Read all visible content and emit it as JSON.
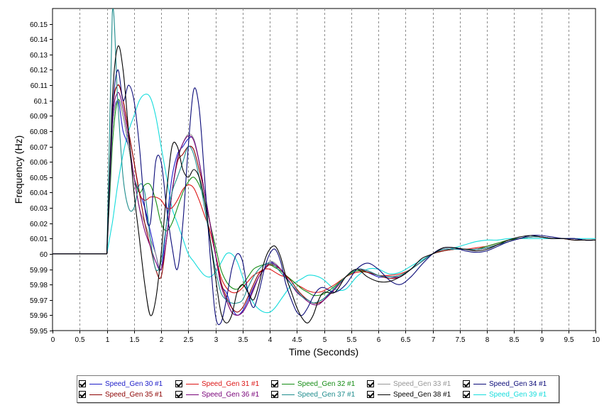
{
  "chart_data": {
    "type": "line",
    "xlabel": "Time (Seconds)",
    "ylabel": "Frequency (Hz)",
    "xlim": [
      0,
      10
    ],
    "ylim": [
      59.95,
      60.16
    ],
    "x_ticks": [
      "0",
      "0.5",
      "1",
      "1.5",
      "2",
      "2.5",
      "3",
      "3.5",
      "4",
      "4.5",
      "5",
      "5.5",
      "6",
      "6.5",
      "7",
      "7.5",
      "8",
      "8.5",
      "9",
      "9.5",
      "10"
    ],
    "y_ticks": [
      "59.95",
      "59.96",
      "59.97",
      "59.98",
      "59.99",
      "60",
      "60.01",
      "60.02",
      "60.03",
      "60.04",
      "60.05",
      "60.06",
      "60.07",
      "60.08",
      "60.09",
      "60.1",
      "60.11",
      "60.12",
      "60.13",
      "60.14",
      "60.15"
    ],
    "grid": "vertical dashed",
    "legend_placement": "bottom",
    "x": [
      0,
      1,
      1.1,
      1.2,
      1.3,
      1.4,
      1.5,
      1.6,
      1.7,
      1.8,
      1.9,
      2.0,
      2.1,
      2.2,
      2.3,
      2.4,
      2.5,
      2.6,
      2.7,
      2.8,
      2.9,
      3.0,
      3.1,
      3.2,
      3.3,
      3.4,
      3.5,
      3.6,
      3.7,
      3.8,
      3.9,
      4.0,
      4.1,
      4.2,
      4.3,
      4.4,
      4.5,
      4.6,
      4.7,
      4.8,
      4.9,
      5.0,
      5.2,
      5.4,
      5.6,
      5.8,
      6.0,
      6.2,
      6.4,
      6.6,
      6.8,
      7.0,
      7.2,
      7.4,
      7.6,
      7.8,
      8.0,
      8.2,
      8.4,
      8.6,
      8.8,
      9.0,
      9.2,
      9.4,
      9.6,
      9.8,
      10.0
    ],
    "series": [
      {
        "name": "Speed_Gen 30 #1",
        "color": "#1c1cc8",
        "values": [
          60,
          60,
          60.08,
          60.1,
          60.08,
          60.07,
          60.05,
          60.04,
          60.03,
          60.015,
          60.0,
          59.99,
          60.02,
          60.05,
          60.065,
          60.07,
          60.075,
          60.075,
          60.06,
          60.04,
          60.02,
          60.0,
          59.98,
          59.975,
          59.965,
          59.96,
          59.963,
          59.97,
          59.978,
          59.985,
          59.99,
          59.995,
          59.993,
          59.99,
          59.985,
          59.98,
          59.975,
          59.972,
          59.97,
          59.968,
          59.968,
          59.97,
          59.978,
          59.985,
          59.99,
          59.988,
          59.985,
          59.985,
          59.985,
          59.99,
          59.995,
          60.0,
          60.003,
          60.003,
          60.003,
          60.003,
          60.004,
          60.006,
          60.008,
          60.01,
          60.011,
          60.011,
          60.01,
          60.01,
          60.01,
          60.009,
          60.009
        ]
      },
      {
        "name": "Speed_Gen 31 #1",
        "color": "#dc1414",
        "values": [
          60,
          60,
          60.09,
          60.11,
          60.1,
          60.08,
          60.06,
          60.04,
          60.035,
          60.037,
          60.037,
          60.035,
          60.03,
          60.03,
          60.035,
          60.042,
          60.045,
          60.043,
          60.035,
          60.025,
          60.015,
          60.0,
          59.985,
          59.978,
          59.975,
          59.975,
          59.978,
          59.982,
          59.986,
          59.988,
          59.99,
          59.99,
          59.988,
          59.986,
          59.985,
          59.983,
          59.98,
          59.978,
          59.976,
          59.975,
          59.975,
          59.976,
          59.98,
          59.985,
          59.988,
          59.988,
          59.986,
          59.986,
          59.987,
          59.99,
          59.995,
          60.0,
          60.002,
          60.003,
          60.003,
          60.004,
          60.005,
          60.007,
          60.009,
          60.01,
          60.011,
          60.011,
          60.01,
          60.01,
          60.009,
          60.009,
          60.009
        ]
      },
      {
        "name": "Speed_Gen 32 #1",
        "color": "#148c14",
        "values": [
          60,
          60,
          60.07,
          60.1,
          60.09,
          60.07,
          60.05,
          60.04,
          60.045,
          60.045,
          60.035,
          60.02,
          60.015,
          60.02,
          60.03,
          60.04,
          60.047,
          60.05,
          60.045,
          60.035,
          60.02,
          60.005,
          59.99,
          59.982,
          59.978,
          59.977,
          59.98,
          59.985,
          59.99,
          59.992,
          59.993,
          59.993,
          59.991,
          59.989,
          59.986,
          59.983,
          59.98,
          59.977,
          59.975,
          59.973,
          59.973,
          59.974,
          59.979,
          59.985,
          59.989,
          59.988,
          59.986,
          59.985,
          59.986,
          59.99,
          59.995,
          60.0,
          60.002,
          60.003,
          60.003,
          60.003,
          60.005,
          60.007,
          60.009,
          60.01,
          60.011,
          60.011,
          60.01,
          60.01,
          60.01,
          60.009,
          60.009
        ]
      },
      {
        "name": "Speed_Gen 33 #1",
        "color": "#969696",
        "values": [
          60,
          60,
          60.08,
          60.1,
          60.09,
          60.07,
          60.05,
          60.03,
          60.02,
          60.01,
          60.0,
          59.99,
          60.01,
          60.04,
          60.06,
          60.072,
          60.078,
          60.075,
          60.06,
          60.04,
          60.02,
          60.0,
          59.98,
          59.97,
          59.962,
          59.96,
          59.962,
          59.968,
          59.976,
          59.985,
          59.99,
          59.995,
          59.994,
          59.99,
          59.985,
          59.98,
          59.975,
          59.972,
          59.97,
          59.968,
          59.969,
          59.971,
          59.978,
          59.985,
          59.99,
          59.989,
          59.986,
          59.985,
          59.986,
          59.99,
          59.995,
          60.0,
          60.003,
          60.003,
          60.003,
          60.003,
          60.004,
          60.006,
          60.008,
          60.01,
          60.011,
          60.011,
          60.01,
          60.01,
          60.01,
          60.009,
          60.009
        ]
      },
      {
        "name": "Speed_Gen 34 #1",
        "color": "#0a0a78",
        "values": [
          60,
          60,
          60.09,
          60.12,
          60.1,
          60.11,
          60.1,
          60.07,
          60.03,
          60.02,
          60.06,
          60.06,
          60.03,
          60.005,
          59.99,
          60.02,
          60.07,
          60.107,
          60.095,
          60.05,
          60.0,
          59.96,
          59.955,
          59.97,
          59.99,
          60.0,
          59.995,
          59.975,
          59.965,
          59.975,
          59.99,
          60.0,
          60.003,
          59.995,
          59.98,
          59.97,
          59.962,
          59.96,
          59.965,
          59.972,
          59.977,
          59.978,
          59.975,
          59.98,
          59.99,
          59.994,
          59.99,
          59.983,
          59.98,
          59.985,
          59.993,
          60.0,
          60.004,
          60.004,
          60.002,
          60.001,
          60.002,
          60.005,
          60.008,
          60.01,
          60.012,
          60.012,
          60.011,
          60.01,
          60.01,
          60.009,
          60.009
        ]
      },
      {
        "name": "Speed_Gen 35 #1",
        "color": "#8c0000",
        "values": [
          60,
          60,
          60.09,
          60.11,
          60.1,
          60.08,
          60.06,
          60.04,
          60.02,
          60.005,
          59.99,
          59.985,
          60.01,
          60.04,
          60.06,
          60.065,
          60.07,
          60.068,
          60.055,
          60.04,
          60.02,
          60.0,
          59.982,
          59.972,
          59.965,
          59.962,
          59.965,
          59.972,
          59.98,
          59.987,
          59.99,
          59.993,
          59.992,
          59.99,
          59.986,
          59.982,
          59.977,
          59.973,
          59.97,
          59.968,
          59.968,
          59.97,
          59.977,
          59.985,
          59.99,
          59.988,
          59.986,
          59.984,
          59.985,
          59.99,
          59.995,
          60.0,
          60.002,
          60.003,
          60.003,
          60.003,
          60.004,
          60.006,
          60.008,
          60.01,
          60.011,
          60.011,
          60.01,
          60.01,
          60.01,
          60.009,
          60.009
        ]
      },
      {
        "name": "Speed_Gen 36 #1",
        "color": "#780078",
        "values": [
          60,
          60,
          60.085,
          60.105,
          60.095,
          60.075,
          60.05,
          60.03,
          60.015,
          60.005,
          59.995,
          59.99,
          60.01,
          60.04,
          60.062,
          60.072,
          60.077,
          60.074,
          60.06,
          60.04,
          60.02,
          60.0,
          59.98,
          59.97,
          59.962,
          59.96,
          59.962,
          59.968,
          59.977,
          59.985,
          59.99,
          59.994,
          59.993,
          59.99,
          59.985,
          59.98,
          59.975,
          59.972,
          59.969,
          59.967,
          59.967,
          59.97,
          59.977,
          59.985,
          59.99,
          59.989,
          59.986,
          59.985,
          59.985,
          59.99,
          59.995,
          60.0,
          60.003,
          60.003,
          60.003,
          60.003,
          60.004,
          60.006,
          60.008,
          60.01,
          60.011,
          60.011,
          60.01,
          60.01,
          60.01,
          60.009,
          60.009
        ]
      },
      {
        "name": "Speed_Gen 37 #1",
        "color": "#1e8c8c",
        "values": [
          60,
          60,
          60.157,
          60.1,
          60.05,
          60.03,
          60.03,
          60.045,
          60.04,
          60.01,
          59.99,
          59.995,
          60.02,
          60.04,
          60.05,
          60.06,
          60.07,
          60.065,
          60.05,
          60.03,
          60.01,
          59.99,
          59.975,
          59.97,
          59.968,
          59.968,
          59.97,
          59.978,
          59.985,
          59.99,
          59.993,
          59.994,
          59.992,
          59.988,
          59.984,
          59.98,
          59.976,
          59.972,
          59.97,
          59.968,
          59.969,
          59.971,
          59.978,
          59.985,
          59.99,
          59.989,
          59.986,
          59.985,
          59.986,
          59.99,
          59.995,
          60.0,
          60.003,
          60.003,
          60.003,
          60.003,
          60.004,
          60.006,
          60.008,
          60.01,
          60.011,
          60.011,
          60.01,
          60.01,
          60.01,
          60.009,
          60.009
        ]
      },
      {
        "name": "Speed_Gen 38 #1",
        "color": "#000000",
        "values": [
          60,
          60,
          60.1,
          60.135,
          60.12,
          60.08,
          60.04,
          60.01,
          59.98,
          59.96,
          59.97,
          60.0,
          60.04,
          60.07,
          60.07,
          60.055,
          60.05,
          60.055,
          60.05,
          60.035,
          60.01,
          59.985,
          59.962,
          59.955,
          59.96,
          59.975,
          59.98,
          59.975,
          59.97,
          59.98,
          59.995,
          60.003,
          60.005,
          59.998,
          59.985,
          59.975,
          59.965,
          59.958,
          59.955,
          59.96,
          59.97,
          59.975,
          59.975,
          59.985,
          59.99,
          59.985,
          59.982,
          59.982,
          59.985,
          59.99,
          59.997,
          60.0,
          60.004,
          60.004,
          60.003,
          60.002,
          60.003,
          60.006,
          60.009,
          60.011,
          60.012,
          60.011,
          60.01,
          60.01,
          60.009,
          60.009,
          60.009
        ]
      },
      {
        "name": "Speed_Gen 39 #1",
        "color": "#14dcdc",
        "values": [
          60,
          60,
          60.02,
          60.045,
          60.065,
          60.08,
          60.09,
          60.1,
          60.104,
          60.102,
          60.09,
          60.07,
          60.05,
          60.03,
          60.02,
          60.01,
          60.0,
          59.995,
          59.99,
          59.986,
          59.985,
          59.988,
          59.994,
          60.0,
          60.0,
          59.995,
          59.985,
          59.975,
          59.968,
          59.964,
          59.962,
          59.962,
          59.965,
          59.97,
          59.975,
          59.98,
          59.982,
          59.984,
          59.986,
          59.986,
          59.985,
          59.983,
          59.977,
          59.977,
          59.985,
          59.99,
          59.99,
          59.987,
          59.988,
          59.992,
          59.996,
          60.0,
          60.002,
          60.004,
          60.006,
          60.008,
          60.009,
          60.009,
          60.01,
          60.01,
          60.01,
          60.01,
          60.01,
          60.01,
          60.01,
          60.01,
          60.01
        ]
      }
    ]
  }
}
